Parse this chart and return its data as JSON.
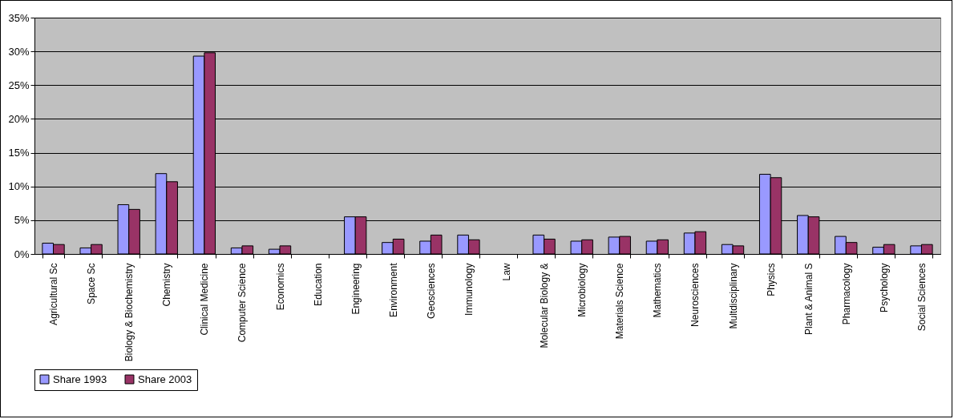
{
  "chart_data": {
    "type": "bar",
    "categories": [
      "Agricultural Sc",
      "Space Sc",
      "Biology & Biochemistry",
      "Chemistry",
      "Clinical Medicine",
      "Computer Science",
      "Economics",
      "Education",
      "Engineering",
      "Environment",
      "Geosciences",
      "Immunology",
      "Law",
      "Molecular Biology &",
      "Microbiology",
      "Materials Science",
      "Mathematics",
      "Neurosciences",
      "Multdisciplinary",
      "Physics",
      "Plant & Animal S",
      "Pharmacology",
      "Psychology",
      "Social Sciences"
    ],
    "series": [
      {
        "name": "Share 1993",
        "color": "#9999ff",
        "values": [
          1.6,
          0.9,
          7.3,
          11.9,
          29.3,
          0.9,
          0.7,
          null,
          5.5,
          1.7,
          1.9,
          2.8,
          null,
          2.8,
          1.9,
          2.5,
          1.9,
          3.1,
          1.4,
          11.8,
          5.7,
          2.6,
          1.0,
          1.2
        ]
      },
      {
        "name": "Share 2003",
        "color": "#993366",
        "values": [
          1.4,
          1.4,
          6.6,
          10.7,
          29.8,
          1.2,
          1.2,
          null,
          5.5,
          2.2,
          2.8,
          2.1,
          null,
          2.2,
          2.1,
          2.6,
          2.1,
          3.3,
          1.2,
          11.3,
          5.5,
          1.7,
          1.4,
          1.4
        ]
      }
    ],
    "ylim": [
      0,
      35
    ],
    "yticks": [
      {
        "value": 0,
        "label": "0%"
      },
      {
        "value": 5,
        "label": "5%"
      },
      {
        "value": 10,
        "label": "10%"
      },
      {
        "value": 15,
        "label": "15%"
      },
      {
        "value": 20,
        "label": "20%"
      },
      {
        "value": 25,
        "label": "25%"
      },
      {
        "value": 30,
        "label": "30%"
      },
      {
        "value": 35,
        "label": "35%"
      }
    ],
    "grid": "y",
    "legend": "bottom"
  }
}
